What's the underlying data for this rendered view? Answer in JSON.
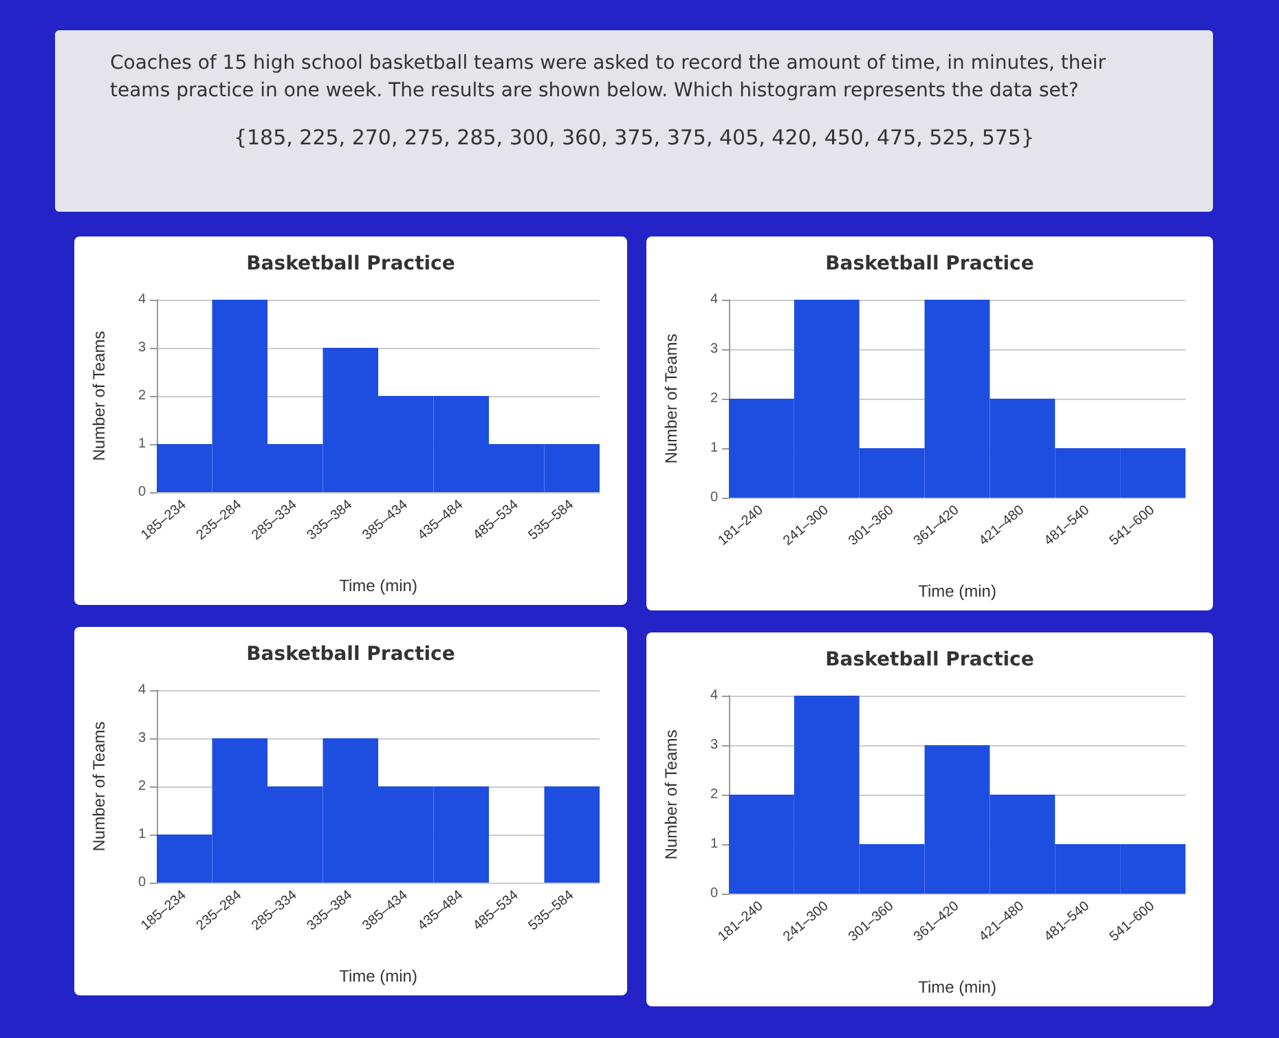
{
  "chart_data": [
    {
      "type": "other",
      "title": "Coaches of 15 high school basketball teams were asked to record the amount of time, in minutes, their teams practice in one week. The results are shown below. Which histogram represents the data set?",
      "annotations": [
        "{185, 225, 270, 275, 285, 300, 360, 375, 375, 405, 420, 450, 475, 525, 575}"
      ]
    },
    {
      "type": "bar",
      "title": "Basketball Practice",
      "xlabel": "Time (min)",
      "ylabel": "Number of Teams",
      "categories": [
        "185–234",
        "235–284",
        "285–334",
        "335–384",
        "385–434",
        "435–484",
        "485–534",
        "535–584"
      ],
      "values": [
        1,
        4,
        1,
        3,
        2,
        2,
        1,
        1
      ],
      "color": "#1d4ee0",
      "ylim": [
        0,
        4
      ],
      "yticks": [
        0,
        1,
        2,
        3,
        4
      ],
      "grid": "y"
    },
    {
      "type": "bar",
      "title": "Basketball Practice",
      "xlabel": "Time (min)",
      "ylabel": "Number of Teams",
      "categories": [
        "181–240",
        "241–300",
        "301–360",
        "361–420",
        "421–480",
        "481–540",
        "541–600"
      ],
      "values": [
        2,
        4,
        1,
        4,
        2,
        1,
        1
      ],
      "color": "#1d4ee0",
      "ylim": [
        0,
        4
      ],
      "yticks": [
        0,
        1,
        2,
        3,
        4
      ],
      "grid": "y"
    },
    {
      "type": "bar",
      "title": "Basketball Practice",
      "xlabel": "Time (min)",
      "ylabel": "Number of Teams",
      "categories": [
        "185–234",
        "235–284",
        "285–334",
        "335–384",
        "385–434",
        "435–484",
        "485–534",
        "535–584"
      ],
      "values": [
        1,
        3,
        2,
        3,
        2,
        2,
        0,
        2
      ],
      "color": "#1d4ee0",
      "ylim": [
        0,
        4
      ],
      "yticks": [
        0,
        1,
        2,
        3,
        4
      ],
      "grid": "y"
    },
    {
      "type": "bar",
      "title": "Basketball Practice",
      "xlabel": "Time (min)",
      "ylabel": "Number of Teams",
      "categories": [
        "181–240",
        "241–300",
        "301–360",
        "361–420",
        "421–480",
        "481–540",
        "541–600"
      ],
      "values": [
        2,
        4,
        1,
        3,
        2,
        1,
        1
      ],
      "color": "#1d4ee0",
      "ylim": [
        0,
        4
      ],
      "yticks": [
        0,
        1,
        2,
        3,
        4
      ],
      "grid": "y"
    }
  ]
}
